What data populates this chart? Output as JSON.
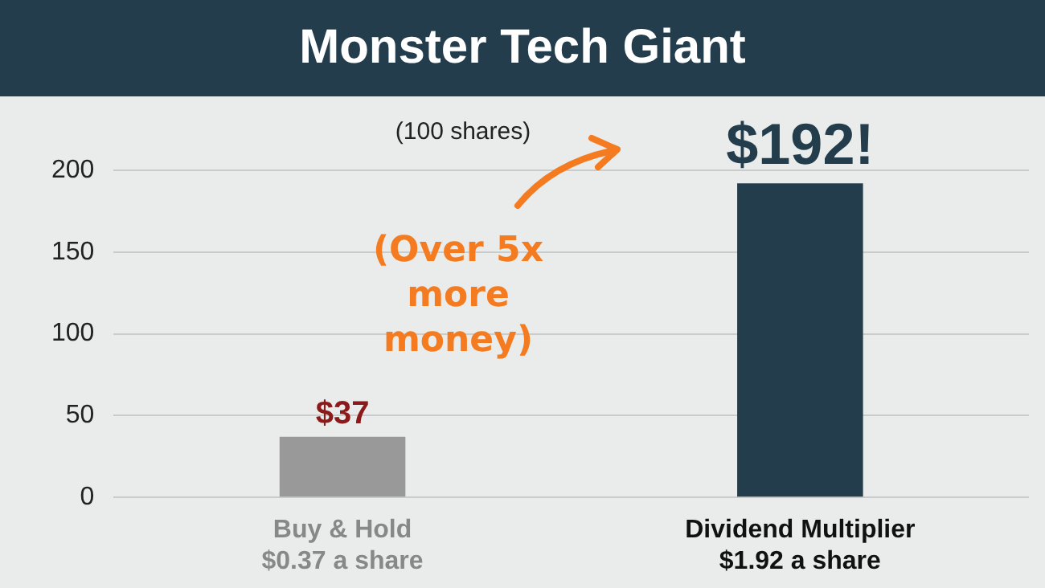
{
  "chart_data": {
    "type": "bar",
    "title": "Monster Tech Giant",
    "categories": [
      "Buy & Hold\n$0.37 a share",
      "Dividend Multiplier\n$1.92 a share"
    ],
    "values": [
      37,
      192
    ],
    "colors": [
      "#999999",
      "#233d4d"
    ],
    "value_labels": [
      "$37",
      "$192!"
    ],
    "ylim": [
      0,
      200
    ],
    "yticks": [
      0,
      50,
      100,
      150,
      200
    ],
    "grid": "y",
    "legend": false,
    "annotations": [
      "(100 shares)",
      "(Over 5x more money)"
    ]
  }
}
